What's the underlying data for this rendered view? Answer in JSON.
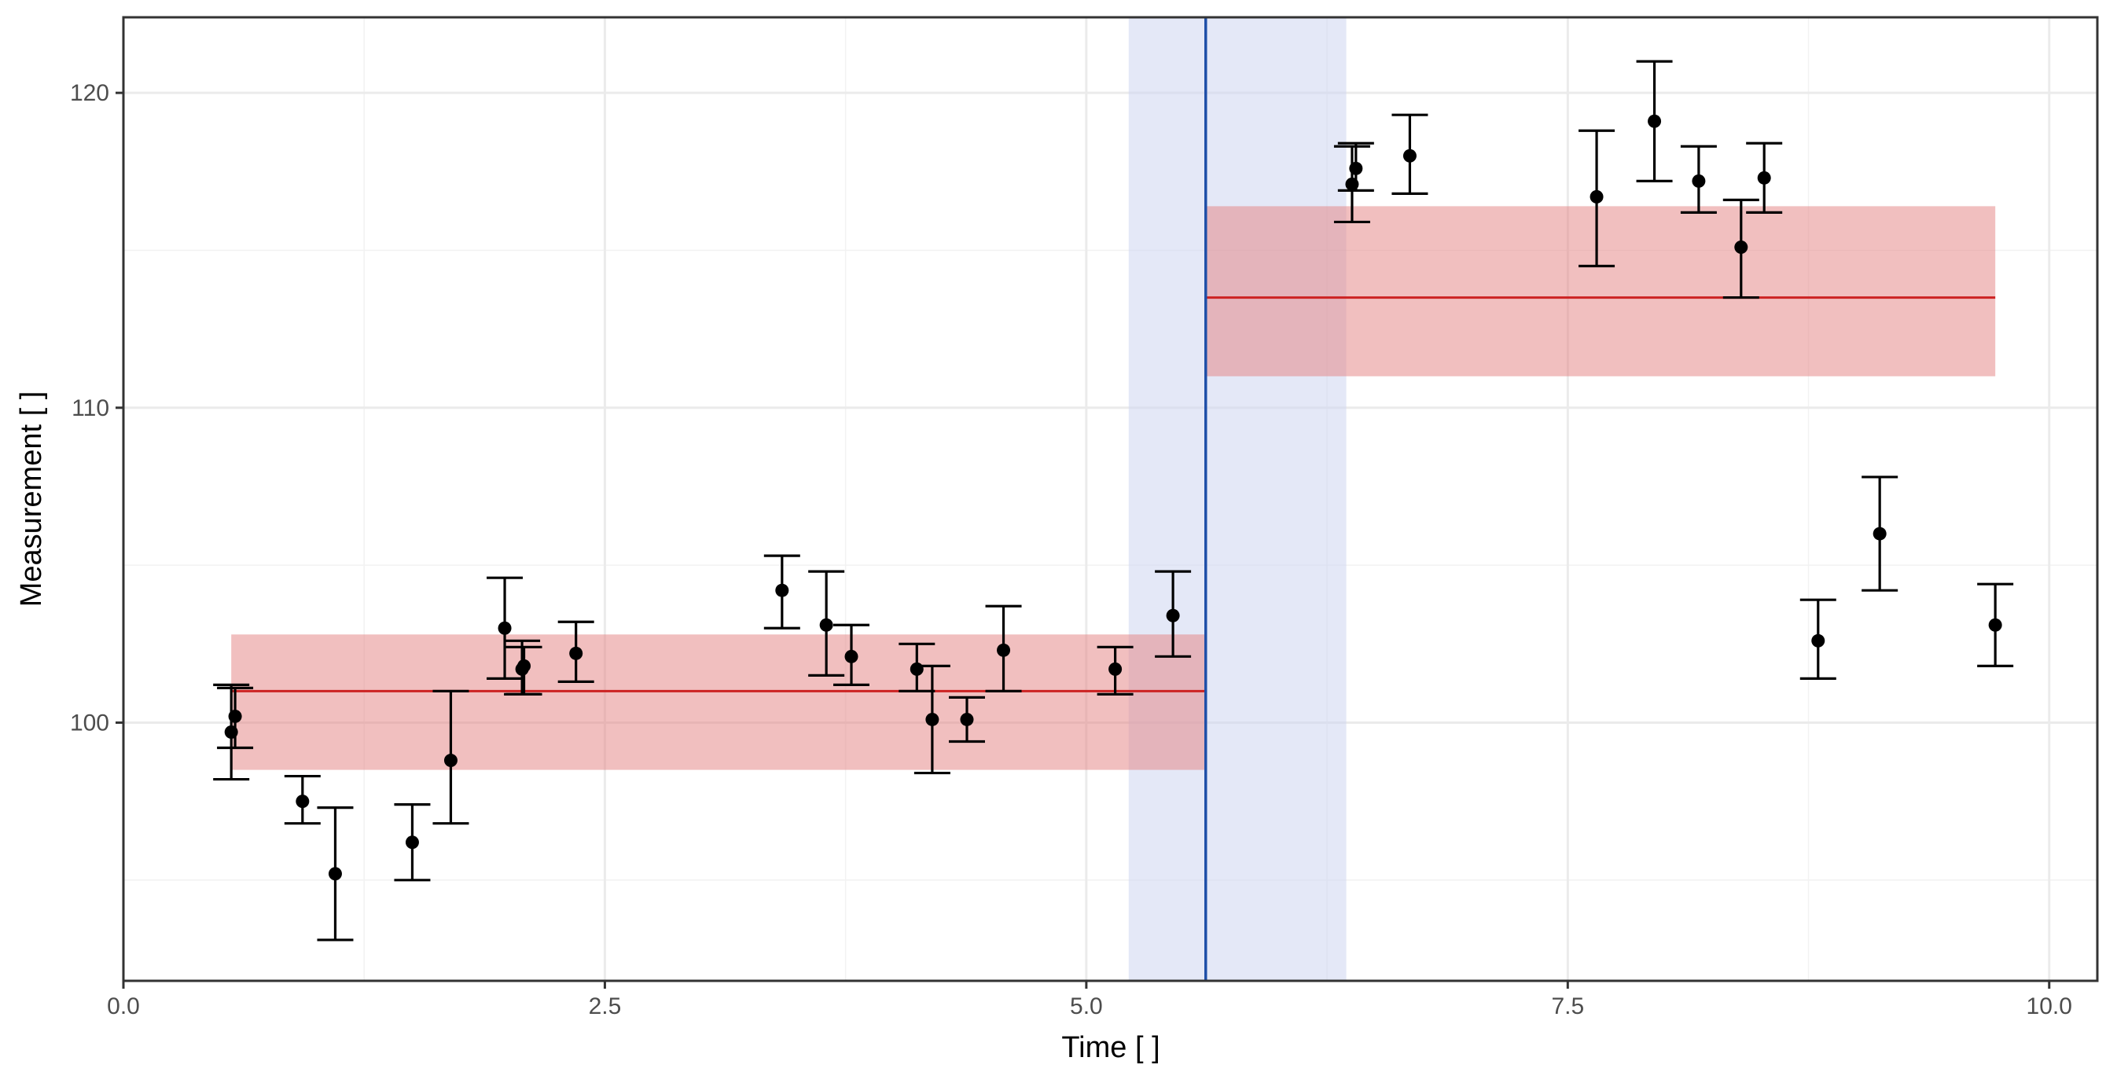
{
  "chart_data": {
    "type": "scatter",
    "xlabel": "Time [ ]",
    "ylabel": "Measurement [ ]",
    "xlim": [
      0,
      10.25
    ],
    "ylim": [
      91.8,
      122.4
    ],
    "x_ticks": [
      0.0,
      2.5,
      5.0,
      7.5,
      10.0
    ],
    "x_tick_labels": [
      "0.0",
      "2.5",
      "5.0",
      "7.5",
      "10.0"
    ],
    "y_ticks": [
      100,
      110,
      120
    ],
    "y_tick_labels": [
      "100",
      "110",
      "120"
    ],
    "grid": true,
    "points": [
      {
        "x": 0.56,
        "y": 99.7,
        "ymin": 98.2,
        "ymax": 101.2
      },
      {
        "x": 0.58,
        "y": 100.2,
        "ymin": 99.2,
        "ymax": 101.1
      },
      {
        "x": 0.93,
        "y": 97.5,
        "ymin": 96.8,
        "ymax": 98.3
      },
      {
        "x": 1.1,
        "y": 95.2,
        "ymin": 93.1,
        "ymax": 97.3
      },
      {
        "x": 1.5,
        "y": 96.2,
        "ymin": 95.0,
        "ymax": 97.4
      },
      {
        "x": 1.7,
        "y": 98.8,
        "ymin": 96.8,
        "ymax": 101.0
      },
      {
        "x": 1.98,
        "y": 103.0,
        "ymin": 101.4,
        "ymax": 104.6
      },
      {
        "x": 2.07,
        "y": 101.7,
        "ymin": 100.9,
        "ymax": 102.6
      },
      {
        "x": 2.08,
        "y": 101.8,
        "ymin": 100.9,
        "ymax": 102.4
      },
      {
        "x": 2.35,
        "y": 102.2,
        "ymin": 101.3,
        "ymax": 103.2
      },
      {
        "x": 3.42,
        "y": 104.2,
        "ymin": 103.0,
        "ymax": 105.3
      },
      {
        "x": 3.65,
        "y": 103.1,
        "ymin": 101.5,
        "ymax": 104.8
      },
      {
        "x": 3.78,
        "y": 102.1,
        "ymin": 101.2,
        "ymax": 103.1
      },
      {
        "x": 4.12,
        "y": 101.7,
        "ymin": 101.0,
        "ymax": 102.5
      },
      {
        "x": 4.2,
        "y": 100.1,
        "ymin": 98.4,
        "ymax": 101.8
      },
      {
        "x": 4.38,
        "y": 100.1,
        "ymin": 99.4,
        "ymax": 100.8
      },
      {
        "x": 4.57,
        "y": 102.3,
        "ymin": 101.0,
        "ymax": 103.7
      },
      {
        "x": 5.15,
        "y": 101.7,
        "ymin": 100.9,
        "ymax": 102.4
      },
      {
        "x": 5.45,
        "y": 103.4,
        "ymin": 102.1,
        "ymax": 104.8
      },
      {
        "x": 6.38,
        "y": 117.1,
        "ymin": 115.9,
        "ymax": 118.3
      },
      {
        "x": 6.4,
        "y": 117.6,
        "ymin": 116.9,
        "ymax": 118.4
      },
      {
        "x": 6.68,
        "y": 118.0,
        "ymin": 116.8,
        "ymax": 119.3
      },
      {
        "x": 7.65,
        "y": 116.7,
        "ymin": 114.5,
        "ymax": 118.8
      },
      {
        "x": 7.95,
        "y": 119.1,
        "ymin": 117.2,
        "ymax": 121.0
      },
      {
        "x": 8.18,
        "y": 117.2,
        "ymin": 116.2,
        "ymax": 118.3
      },
      {
        "x": 8.4,
        "y": 115.1,
        "ymin": 113.5,
        "ymax": 116.6
      },
      {
        "x": 8.52,
        "y": 117.3,
        "ymin": 116.2,
        "ymax": 118.4
      },
      {
        "x": 8.8,
        "y": 102.6,
        "ymin": 101.4,
        "ymax": 103.9
      },
      {
        "x": 9.12,
        "y": 106.0,
        "ymin": 104.2,
        "ymax": 107.8
      },
      {
        "x": 9.72,
        "y": 103.1,
        "ymin": 101.8,
        "ymax": 104.4
      }
    ],
    "segments": [
      {
        "x_start": 0.56,
        "x_end": 5.62,
        "mean": 101.0,
        "lower": 98.5,
        "upper": 102.8
      },
      {
        "x_start": 5.62,
        "x_end": 9.72,
        "mean": 113.5,
        "lower": 111.0,
        "upper": 116.4
      }
    ],
    "change_point": {
      "x": 5.62,
      "interval": [
        5.22,
        6.35
      ]
    },
    "colors": {
      "points": "#000000",
      "segment_line": "#cc2222",
      "segment_band": "#e38080",
      "change_point_line": "#1f4fa8",
      "change_point_band": "#cdd6f0",
      "grid": "#ebebeb",
      "panel_border": "#333333"
    }
  }
}
